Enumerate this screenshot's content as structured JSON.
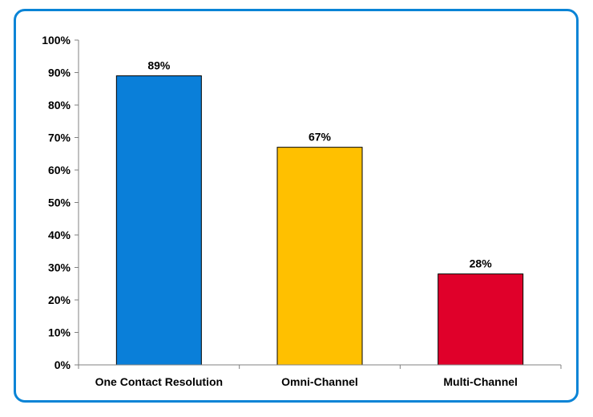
{
  "chart_data": {
    "type": "bar",
    "categories": [
      "One Contact Resolution",
      "Omni-Channel",
      "Multi-Channel"
    ],
    "values": [
      89,
      67,
      28
    ],
    "data_labels": [
      "89%",
      "67%",
      "28%"
    ],
    "colors": [
      "#0a7fd9",
      "#ffc000",
      "#e0002a"
    ],
    "ylim": [
      0,
      100
    ],
    "ytick_step": 10,
    "ytick_labels": [
      "0%",
      "10%",
      "20%",
      "30%",
      "40%",
      "50%",
      "60%",
      "70%",
      "80%",
      "90%",
      "100%"
    ],
    "title": "",
    "xlabel": "",
    "ylabel": "",
    "grid": false,
    "legend": "none"
  },
  "frame_color": "#0a84d6"
}
